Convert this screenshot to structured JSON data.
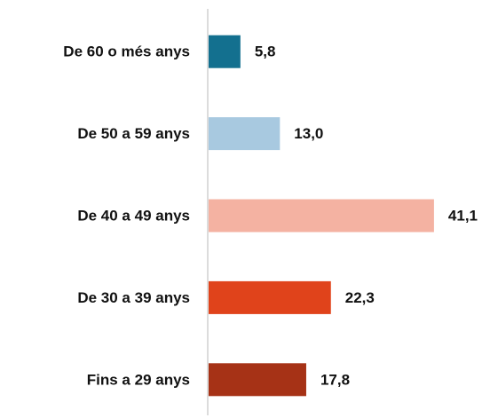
{
  "chart_data": {
    "type": "bar",
    "orientation": "horizontal",
    "categories": [
      "De 60 o més anys",
      "De 50 a 59 anys",
      "De 40 a 49 anys",
      "De 30 a 39 anys",
      "Fins a 29 anys"
    ],
    "values": [
      5.8,
      13.0,
      41.1,
      22.3,
      17.8
    ],
    "value_labels": [
      "5,8",
      "13,0",
      "41,1",
      "22,3",
      "17,8"
    ],
    "colors": [
      "#13708f",
      "#a8c9e0",
      "#f4b2a2",
      "#e0431b",
      "#a63216"
    ],
    "xlim": [
      0,
      45
    ]
  }
}
